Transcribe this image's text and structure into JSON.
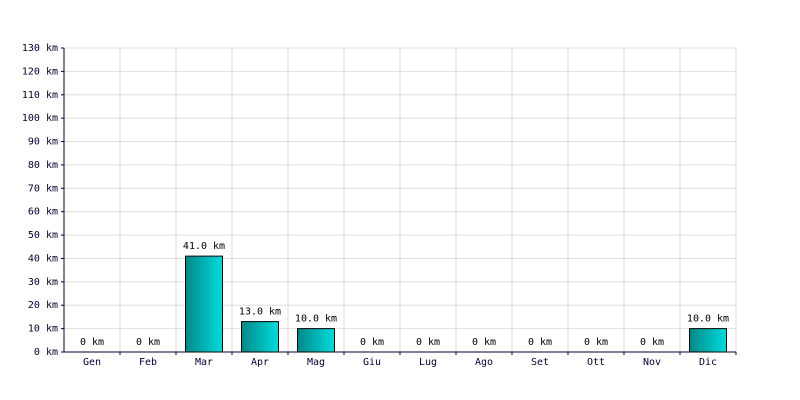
{
  "chart_data": {
    "type": "bar",
    "categories": [
      "Gen",
      "Feb",
      "Mar",
      "Apr",
      "Mag",
      "Giu",
      "Lug",
      "Ago",
      "Set",
      "Ott",
      "Nov",
      "Dic"
    ],
    "values": [
      0,
      0,
      41,
      13,
      10,
      0,
      0,
      0,
      0,
      0,
      0,
      10
    ],
    "value_labels": [
      "0 km",
      "0 km",
      "41.0 km",
      "13.0 km",
      "10.0 km",
      "0 km",
      "0 km",
      "0 km",
      "0 km",
      "0 km",
      "0 km",
      "10.0 km"
    ],
    "color": "#00dddd",
    "ylim": [
      0,
      130
    ],
    "yticks": [
      {
        "value": 0,
        "label": "0 km"
      },
      {
        "value": 10,
        "label": "10 km"
      },
      {
        "value": 20,
        "label": "20 km"
      },
      {
        "value": 30,
        "label": "30 km"
      },
      {
        "value": 40,
        "label": "40 km"
      },
      {
        "value": 50,
        "label": "50 km"
      },
      {
        "value": 60,
        "label": "60 km"
      },
      {
        "value": 70,
        "label": "70 km"
      },
      {
        "value": 80,
        "label": "80 km"
      },
      {
        "value": 90,
        "label": "90 km"
      },
      {
        "value": 100,
        "label": "100 km"
      },
      {
        "value": 110,
        "label": "110 km"
      },
      {
        "value": 120,
        "label": "120 km"
      },
      {
        "value": 130,
        "label": "130 km"
      }
    ],
    "grid": true
  }
}
